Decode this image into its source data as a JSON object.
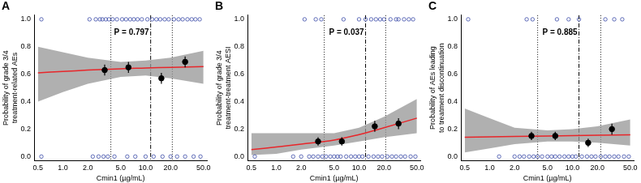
{
  "chart_data": [
    {
      "type": "scatter",
      "title": "A",
      "annotation": "P = 0.797",
      "x_label": "Cmin1 (µg/mL)",
      "y_label": [
        "Probability of grade 3/4",
        "treatment-related AEs"
      ],
      "log": "x",
      "grid": false,
      "xlim": [
        0.45,
        55
      ],
      "xticks": [
        0.5,
        {
          "value": 1,
          "label": "1.0"
        },
        {
          "value": 2,
          "label": "2.0"
        },
        {
          "value": 5,
          "label": "5.0"
        },
        {
          "value": 10,
          "label": "10.0"
        },
        {
          "value": 20,
          "label": "20.0"
        },
        {
          "value": 50,
          "label": "50.0"
        }
      ],
      "ylim": [
        -0.03,
        1.03
      ],
      "yticks": [
        {
          "value": 0,
          "label": "0.0"
        },
        0.2,
        0.4,
        0.6,
        0.8,
        {
          "value": 1,
          "label": "1.0"
        }
      ],
      "vlines": [
        {
          "x": 3.8,
          "line_style": "dotted"
        },
        {
          "x": 11.5,
          "line_style": "dashdot"
        },
        {
          "x": 21,
          "line_style": "dotted"
        }
      ],
      "series": [
        {
          "type": "scatter",
          "marker": "circle_open",
          "color": "#3b4ba8",
          "x": [
            0.55,
            2.1,
            2.5,
            2.8,
            3.0,
            3.3,
            3.6,
            4.0,
            4.5,
            5.2,
            5.8,
            6.5,
            7.2,
            8.0,
            9.0,
            10.5,
            12,
            13.5,
            15,
            17,
            19,
            22,
            25,
            28,
            32,
            36,
            40,
            45,
            0.55,
            2.3,
            2.7,
            3.1,
            3.5,
            4.2,
            6.0,
            7.5,
            10,
            12.5,
            16,
            20,
            24,
            30,
            38,
            46
          ],
          "values": [
            1,
            1,
            1,
            1,
            1,
            1,
            1,
            1,
            1,
            1,
            1,
            1,
            1,
            1,
            1,
            1,
            1,
            1,
            1,
            1,
            1,
            1,
            1,
            1,
            1,
            1,
            1,
            1,
            0,
            0,
            0,
            0,
            0,
            0,
            0,
            0,
            0,
            0,
            0,
            0,
            0,
            0,
            0,
            0
          ]
        },
        {
          "type": "line",
          "color": "#e8262a",
          "x": [
            0.5,
            1,
            2,
            5,
            10,
            20,
            50
          ],
          "values": [
            0.61,
            0.62,
            0.63,
            0.64,
            0.645,
            0.65,
            0.655
          ],
          "lower": [
            0.4,
            0.47,
            0.53,
            0.58,
            0.59,
            0.57,
            0.53
          ],
          "upper": [
            0.8,
            0.76,
            0.72,
            0.69,
            0.7,
            0.72,
            0.77
          ]
        },
        {
          "type": "scatter",
          "marker": "circle",
          "color": "#000000",
          "x": [
            3.2,
            6.2,
            15.5,
            30
          ],
          "values": [
            0.63,
            0.65,
            0.57,
            0.69
          ],
          "error_low": [
            0.59,
            0.61,
            0.53,
            0.65
          ],
          "error_high": [
            0.67,
            0.69,
            0.61,
            0.73
          ]
        }
      ]
    },
    {
      "type": "scatter",
      "title": "B",
      "annotation": "P = 0.037",
      "x_label": "Cmin1 (µg/mL)",
      "y_label": [
        "Probability of grade 3/4",
        "treatment-treatment AESI"
      ],
      "log": "x",
      "grid": false,
      "xlim": [
        0.45,
        55
      ],
      "xticks": [
        0.5,
        {
          "value": 1,
          "label": "1.0"
        },
        {
          "value": 2,
          "label": "2.0"
        },
        {
          "value": 5,
          "label": "5.0"
        },
        {
          "value": 10,
          "label": "10.0"
        },
        {
          "value": 20,
          "label": "20.0"
        },
        {
          "value": 50,
          "label": "50.0"
        }
      ],
      "ylim": [
        -0.03,
        1.03
      ],
      "yticks": [
        {
          "value": 0,
          "label": "0.0"
        },
        0.2,
        0.4,
        0.6,
        0.8,
        {
          "value": 1,
          "label": "1.0"
        }
      ],
      "vlines": [
        {
          "x": 3.8,
          "line_style": "dotted"
        },
        {
          "x": 12,
          "line_style": "dashdot"
        },
        {
          "x": 21,
          "line_style": "dotted"
        }
      ],
      "series": [
        {
          "type": "scatter",
          "marker": "circle_open",
          "color": "#3b4ba8",
          "x": [
            2.2,
            3.0,
            3.5,
            6.5,
            10,
            12,
            14,
            16,
            18,
            20,
            24,
            28,
            30,
            35,
            40,
            45,
            0.55,
            1.6,
            2.0,
            2.5,
            2.8,
            3.2,
            3.6,
            4.0,
            4.5,
            5,
            5.5,
            6,
            7,
            8,
            9,
            10,
            11,
            13,
            15,
            17,
            19,
            22,
            25,
            28,
            32,
            36,
            42,
            48
          ],
          "values": [
            1,
            1,
            1,
            1,
            1,
            1,
            1,
            1,
            1,
            1,
            1,
            1,
            1,
            1,
            1,
            1,
            0,
            0,
            0,
            0,
            0,
            0,
            0,
            0,
            0,
            0,
            0,
            0,
            0,
            0,
            0,
            0,
            0,
            0,
            0,
            0,
            0,
            0,
            0,
            0,
            0,
            0,
            0,
            0
          ]
        },
        {
          "type": "line",
          "color": "#e8262a",
          "x": [
            0.5,
            1,
            2,
            5,
            10,
            20,
            50
          ],
          "values": [
            0.05,
            0.07,
            0.09,
            0.12,
            0.16,
            0.21,
            0.28
          ],
          "lower": [
            0.01,
            0.02,
            0.05,
            0.08,
            0.11,
            0.14,
            0.17
          ],
          "upper": [
            0.17,
            0.17,
            0.17,
            0.17,
            0.21,
            0.29,
            0.42
          ]
        },
        {
          "type": "scatter",
          "marker": "circle",
          "color": "#000000",
          "x": [
            3.2,
            6.2,
            15.5,
            30
          ],
          "values": [
            0.11,
            0.11,
            0.22,
            0.24
          ],
          "error_low": [
            0.08,
            0.08,
            0.18,
            0.2
          ],
          "error_high": [
            0.14,
            0.14,
            0.26,
            0.28
          ]
        }
      ]
    },
    {
      "type": "scatter",
      "title": "C",
      "annotation": "P = 0.885",
      "x_label": "Cmin1 (µg/mL)",
      "y_label": [
        "Probability of AEs leading",
        "to treatment discontinuation"
      ],
      "log": "x",
      "grid": false,
      "xlim": [
        0.45,
        55
      ],
      "xticks": [
        0.5,
        {
          "value": 1,
          "label": "1.0"
        },
        {
          "value": 2,
          "label": "2.0"
        },
        {
          "value": 5,
          "label": "5.0"
        },
        {
          "value": 10,
          "label": "10.0"
        },
        {
          "value": 20,
          "label": "20.0"
        },
        {
          "value": 50,
          "label": "50.0"
        }
      ],
      "ylim": [
        -0.03,
        1.03
      ],
      "yticks": [
        {
          "value": 0,
          "label": "0.0"
        },
        0.2,
        0.4,
        0.6,
        0.8,
        {
          "value": 1,
          "label": "1.0"
        }
      ],
      "vlines": [
        {
          "x": 3.8,
          "line_style": "dotted"
        },
        {
          "x": 12,
          "line_style": "dashdot"
        },
        {
          "x": 22,
          "line_style": "dotted"
        }
      ],
      "series": [
        {
          "type": "scatter",
          "marker": "circle_open",
          "color": "#3b4ba8",
          "x": [
            0.55,
            2.8,
            3.3,
            6.5,
            9,
            12,
            25,
            32,
            40,
            1.3,
            2.0,
            2.3,
            2.6,
            3.0,
            3.4,
            3.8,
            4.3,
            5,
            5.6,
            6.2,
            7,
            8,
            9,
            10,
            11,
            13,
            15,
            17,
            19,
            22,
            25,
            28,
            32,
            36,
            42,
            48
          ],
          "values": [
            1,
            1,
            1,
            1,
            1,
            1,
            1,
            1,
            1,
            0,
            0,
            0,
            0,
            0,
            0,
            0,
            0,
            0,
            0,
            0,
            0,
            0,
            0,
            0,
            0,
            0,
            0,
            0,
            0,
            0,
            0,
            0,
            0,
            0,
            0,
            0
          ]
        },
        {
          "type": "line",
          "color": "#e8262a",
          "x": [
            0.5,
            1,
            2,
            5,
            10,
            20,
            50
          ],
          "values": [
            0.14,
            0.143,
            0.146,
            0.15,
            0.152,
            0.155,
            0.158
          ],
          "lower": [
            0.03,
            0.06,
            0.09,
            0.11,
            0.11,
            0.1,
            0.08
          ],
          "upper": [
            0.35,
            0.28,
            0.21,
            0.19,
            0.2,
            0.22,
            0.27
          ]
        },
        {
          "type": "scatter",
          "marker": "circle",
          "color": "#000000",
          "x": [
            3.2,
            6.2,
            15.5,
            30
          ],
          "values": [
            0.15,
            0.15,
            0.1,
            0.2
          ],
          "error_low": [
            0.12,
            0.12,
            0.07,
            0.16
          ],
          "error_high": [
            0.18,
            0.18,
            0.13,
            0.24
          ]
        }
      ]
    }
  ]
}
